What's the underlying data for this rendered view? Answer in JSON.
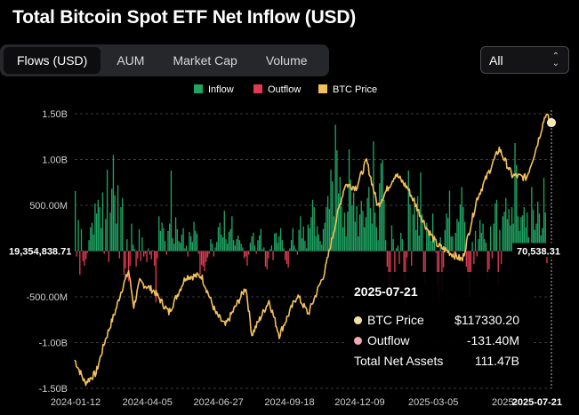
{
  "title": "Total Bitcoin Spot ETF Net Inflow (USD)",
  "tabs": [
    {
      "label": "Flows (USD)",
      "active": true
    },
    {
      "label": "AUM",
      "active": false
    },
    {
      "label": "Market Cap",
      "active": false
    },
    {
      "label": "Volume",
      "active": false
    }
  ],
  "range_select": {
    "value": "All"
  },
  "colors": {
    "inflow": "#1fa463",
    "outflow": "#e03b52",
    "btc": "#f3c15b",
    "background": "#000000"
  },
  "tooltip": {
    "date": "2025-07-21",
    "btc_label": "BTC Price",
    "btc_value": "$117330.20",
    "outflow_label": "Outflow",
    "outflow_value": "-131.40M",
    "assets_label": "Total Net Assets",
    "assets_value": "111.47B"
  },
  "chart_data": {
    "type": "bar",
    "series": [
      {
        "name": "Inflow",
        "color": "#1fa463"
      },
      {
        "name": "Outflow",
        "color": "#e03b52"
      },
      {
        "name": "BTC Price",
        "color": "#f3c15b",
        "type": "line"
      }
    ],
    "legend_position": "top-center",
    "ylim_left": [
      -1500000000,
      1500000000
    ],
    "y_ticks_left": [
      "1.50B",
      "1.00B",
      "500.00M",
      "-500.00M",
      "-1.00B",
      "-1.50B"
    ],
    "y_tick_values_left": [
      1500000000,
      1000000000,
      500000000,
      -500000000,
      -1000000000,
      -1500000000
    ],
    "y_zero_left_label": "19,354,838.71",
    "y_zero_right_label": "70,538.31",
    "ylim_right_btc": [
      38000,
      120000
    ],
    "x_range": [
      "2024-01-11",
      "2025-07-21"
    ],
    "x_ticks": [
      "2024-01-12",
      "2024-04-05",
      "2024-06-27",
      "2024-09-18",
      "2024-12-09",
      "2025-03-05",
      "2025-",
      "2025-07-21"
    ],
    "x_tick_dates": [
      "2024-01-12",
      "2024-04-05",
      "2024-06-27",
      "2024-09-18",
      "2024-12-09",
      "2025-03-05",
      "2025-05-27",
      "2025-07-21"
    ],
    "flows_millions_daily": [
      655,
      -60,
      340,
      -260,
      240,
      -110,
      -160,
      -90,
      -20,
      120,
      260,
      310,
      180,
      520,
      410,
      560,
      480,
      250,
      640,
      -30,
      350,
      890,
      -120,
      420,
      680,
      1050,
      610,
      300,
      720,
      -80,
      480,
      580,
      -260,
      -190,
      130,
      -330,
      -160,
      300,
      70,
      20,
      -170,
      -80,
      240,
      -110,
      150,
      -60,
      -30,
      -120,
      30,
      -40,
      -90,
      10,
      -160,
      -560,
      -80,
      380,
      220,
      310,
      250,
      110,
      -40,
      220,
      300,
      880,
      140,
      80,
      370,
      240,
      110,
      90,
      180,
      250,
      30,
      60,
      -60,
      210,
      160,
      100,
      320,
      220,
      190,
      -30,
      -260,
      -150,
      -170,
      -220,
      -120,
      -70,
      -30,
      130,
      80,
      -60,
      40,
      100,
      260,
      310,
      180,
      150,
      440,
      130,
      80,
      210,
      240,
      380,
      120,
      60,
      130,
      170,
      120,
      80,
      40,
      -80,
      -60,
      -160,
      -40,
      90,
      160,
      200,
      60,
      -30,
      120,
      170,
      240,
      20,
      40,
      -170,
      -200,
      -80,
      20,
      60,
      -100,
      190,
      200,
      90,
      160,
      250,
      120,
      30,
      -100,
      -140,
      -180,
      30,
      120,
      250,
      60,
      20,
      -40,
      230,
      380,
      140,
      270,
      110,
      30,
      290,
      250,
      370,
      560,
      480,
      160,
      270,
      180,
      110,
      70,
      240,
      310,
      480,
      600,
      460,
      890,
      760,
      380,
      1380,
      1100,
      630,
      810,
      490,
      260,
      420,
      160,
      430,
      1110,
      780,
      500,
      640,
      320,
      490,
      160,
      400,
      550,
      440,
      260,
      370,
      580,
      700,
      470,
      300,
      1200,
      420,
      260,
      120,
      740,
      960,
      1000,
      560,
      120,
      -170,
      -400,
      -450,
      280,
      130,
      -230,
      30,
      60,
      -140,
      200,
      130,
      -330,
      -560,
      -70,
      880,
      510,
      -160,
      400,
      590,
      230,
      600,
      170,
      860,
      400,
      -260,
      -360,
      310,
      180,
      190,
      110,
      410,
      140,
      -20,
      -370,
      -580,
      150,
      -440,
      -180,
      230,
      410,
      360,
      660,
      160,
      160,
      -40,
      200,
      350,
      320,
      510,
      700,
      480,
      320,
      -170,
      -300,
      -500,
      -240,
      100,
      -140,
      220,
      -60,
      130,
      340,
      200,
      300,
      130,
      90,
      -330,
      -200,
      270,
      -80,
      300,
      520,
      560,
      -370,
      230,
      -140,
      380,
      430,
      580,
      350,
      460,
      280,
      480,
      300,
      1180,
      940,
      380,
      220,
      370,
      390,
      480,
      260,
      420,
      150,
      -40,
      700,
      450,
      230,
      300,
      540,
      410,
      170,
      250,
      800,
      420,
      -131
    ],
    "btc_price_keypoints": [
      [
        "2024-01-11",
        46500
      ],
      [
        "2024-01-23",
        39600
      ],
      [
        "2024-02-05",
        42600
      ],
      [
        "2024-02-15",
        51900
      ],
      [
        "2024-02-28",
        61400
      ],
      [
        "2024-03-05",
        66800
      ],
      [
        "2024-03-14",
        73100
      ],
      [
        "2024-03-20",
        62500
      ],
      [
        "2024-03-27",
        69800
      ],
      [
        "2024-04-13",
        67000
      ],
      [
        "2024-04-30",
        60600
      ],
      [
        "2024-05-20",
        71400
      ],
      [
        "2024-06-07",
        71600
      ],
      [
        "2024-06-24",
        60300
      ],
      [
        "2024-07-05",
        56700
      ],
      [
        "2024-07-29",
        68200
      ],
      [
        "2024-08-05",
        54000
      ],
      [
        "2024-08-25",
        64200
      ],
      [
        "2024-09-06",
        53900
      ],
      [
        "2024-09-27",
        65800
      ],
      [
        "2024-10-10",
        60300
      ],
      [
        "2024-10-29",
        72700
      ],
      [
        "2024-11-13",
        90000
      ],
      [
        "2024-11-22",
        98900
      ],
      [
        "2024-12-05",
        98000
      ],
      [
        "2024-12-17",
        106000
      ],
      [
        "2024-12-30",
        92400
      ],
      [
        "2025-01-20",
        102000
      ],
      [
        "2025-02-03",
        97800
      ],
      [
        "2025-02-25",
        86000
      ],
      [
        "2025-03-10",
        80700
      ],
      [
        "2025-04-08",
        76300
      ],
      [
        "2025-04-25",
        94600
      ],
      [
        "2025-05-21",
        109600
      ],
      [
        "2025-06-05",
        101600
      ],
      [
        "2025-06-22",
        100900
      ],
      [
        "2025-07-03",
        109600
      ],
      [
        "2025-07-14",
        119800
      ],
      [
        "2025-07-21",
        117330
      ]
    ]
  }
}
